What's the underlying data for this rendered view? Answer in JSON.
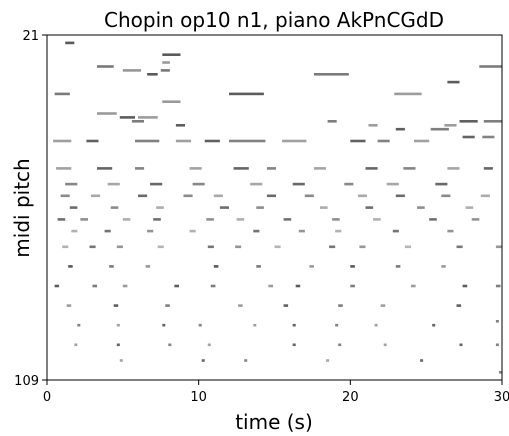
{
  "chart_data": {
    "type": "heatmap",
    "title": "Chopin op10 n1, piano AkPnCGdD",
    "xlabel": "time (s)",
    "ylabel": "midi pitch",
    "xlim": [
      0,
      30
    ],
    "ylim": [
      109,
      21
    ],
    "y_axis_inverted": true,
    "xticks": [
      0,
      10,
      20,
      30
    ],
    "yticks": [
      21,
      109
    ],
    "colormap": "grayscale (white = 0, dark = high velocity)",
    "grid": false,
    "legend": "none",
    "note_events": [
      {
        "t": 1.2,
        "pitch": 23,
        "dur": 0.6
      },
      {
        "t": 3.3,
        "pitch": 29,
        "dur": 1.1
      },
      {
        "t": 5.0,
        "pitch": 30,
        "dur": 1.2
      },
      {
        "t": 6.6,
        "pitch": 31,
        "dur": 0.7
      },
      {
        "t": 7.5,
        "pitch": 30,
        "dur": 0.6
      },
      {
        "t": 7.6,
        "pitch": 28,
        "dur": 0.5
      },
      {
        "t": 7.6,
        "pitch": 26,
        "dur": 1.2
      },
      {
        "t": 0.5,
        "pitch": 36,
        "dur": 1.0
      },
      {
        "t": 7.6,
        "pitch": 38,
        "dur": 1.2
      },
      {
        "t": 12.0,
        "pitch": 36,
        "dur": 2.3
      },
      {
        "t": 17.6,
        "pitch": 31,
        "dur": 2.3
      },
      {
        "t": 22.9,
        "pitch": 36,
        "dur": 1.8
      },
      {
        "t": 26.4,
        "pitch": 33,
        "dur": 0.8
      },
      {
        "t": 28.5,
        "pitch": 29,
        "dur": 1.6
      },
      {
        "t": 3.3,
        "pitch": 41,
        "dur": 1.3
      },
      {
        "t": 4.8,
        "pitch": 42,
        "dur": 1.0
      },
      {
        "t": 5.6,
        "pitch": 43,
        "dur": 0.8
      },
      {
        "t": 6.0,
        "pitch": 42,
        "dur": 1.3
      },
      {
        "t": 8.5,
        "pitch": 44,
        "dur": 0.6
      },
      {
        "t": 18.5,
        "pitch": 43,
        "dur": 0.6
      },
      {
        "t": 21.2,
        "pitch": 44,
        "dur": 0.6
      },
      {
        "t": 23.0,
        "pitch": 45,
        "dur": 0.6
      },
      {
        "t": 25.3,
        "pitch": 45,
        "dur": 1.2
      },
      {
        "t": 26.2,
        "pitch": 44,
        "dur": 0.8
      },
      {
        "t": 27.2,
        "pitch": 43,
        "dur": 1.2
      },
      {
        "t": 28.8,
        "pitch": 43,
        "dur": 1.2
      },
      {
        "t": 0.4,
        "pitch": 48,
        "dur": 1.2
      },
      {
        "t": 2.6,
        "pitch": 48,
        "dur": 0.8
      },
      {
        "t": 5.8,
        "pitch": 48,
        "dur": 1.6
      },
      {
        "t": 8.5,
        "pitch": 48,
        "dur": 1.0
      },
      {
        "t": 10.4,
        "pitch": 48,
        "dur": 1.0
      },
      {
        "t": 12.0,
        "pitch": 48,
        "dur": 2.4
      },
      {
        "t": 15.5,
        "pitch": 48,
        "dur": 1.6
      },
      {
        "t": 20.0,
        "pitch": 48,
        "dur": 1.0
      },
      {
        "t": 21.8,
        "pitch": 48,
        "dur": 0.8
      },
      {
        "t": 24.2,
        "pitch": 48,
        "dur": 1.0
      },
      {
        "t": 27.4,
        "pitch": 47,
        "dur": 0.8
      },
      {
        "t": 28.7,
        "pitch": 47,
        "dur": 0.8
      },
      {
        "t": 0.6,
        "pitch": 55,
        "dur": 1.0
      },
      {
        "t": 3.3,
        "pitch": 55,
        "dur": 1.0
      },
      {
        "t": 5.8,
        "pitch": 55,
        "dur": 0.6
      },
      {
        "t": 9.4,
        "pitch": 55,
        "dur": 0.8
      },
      {
        "t": 12.3,
        "pitch": 55,
        "dur": 1.0
      },
      {
        "t": 14.5,
        "pitch": 55,
        "dur": 0.6
      },
      {
        "t": 17.6,
        "pitch": 55,
        "dur": 0.8
      },
      {
        "t": 21.0,
        "pitch": 55,
        "dur": 0.8
      },
      {
        "t": 23.5,
        "pitch": 55,
        "dur": 0.8
      },
      {
        "t": 26.4,
        "pitch": 55,
        "dur": 0.8
      },
      {
        "t": 28.8,
        "pitch": 55,
        "dur": 0.6
      },
      {
        "t": 1.2,
        "pitch": 59,
        "dur": 0.8
      },
      {
        "t": 4.0,
        "pitch": 59,
        "dur": 0.8
      },
      {
        "t": 6.8,
        "pitch": 59,
        "dur": 0.8
      },
      {
        "t": 9.6,
        "pitch": 59,
        "dur": 0.8
      },
      {
        "t": 13.4,
        "pitch": 59,
        "dur": 0.8
      },
      {
        "t": 16.2,
        "pitch": 59,
        "dur": 0.8
      },
      {
        "t": 19.6,
        "pitch": 59,
        "dur": 0.6
      },
      {
        "t": 22.4,
        "pitch": 59,
        "dur": 0.8
      },
      {
        "t": 25.6,
        "pitch": 59,
        "dur": 0.8
      },
      {
        "t": 0.9,
        "pitch": 62,
        "dur": 0.6
      },
      {
        "t": 2.9,
        "pitch": 62,
        "dur": 0.6
      },
      {
        "t": 6.0,
        "pitch": 62,
        "dur": 0.6
      },
      {
        "t": 9.0,
        "pitch": 62,
        "dur": 0.6
      },
      {
        "t": 11.0,
        "pitch": 62,
        "dur": 0.6
      },
      {
        "t": 14.5,
        "pitch": 62,
        "dur": 0.6
      },
      {
        "t": 17.0,
        "pitch": 62,
        "dur": 0.6
      },
      {
        "t": 20.5,
        "pitch": 62,
        "dur": 0.6
      },
      {
        "t": 23.0,
        "pitch": 62,
        "dur": 0.6
      },
      {
        "t": 26.0,
        "pitch": 62,
        "dur": 0.6
      },
      {
        "t": 28.6,
        "pitch": 62,
        "dur": 0.6
      },
      {
        "t": 1.5,
        "pitch": 65,
        "dur": 0.5
      },
      {
        "t": 4.2,
        "pitch": 65,
        "dur": 0.5
      },
      {
        "t": 7.2,
        "pitch": 65,
        "dur": 0.5
      },
      {
        "t": 11.4,
        "pitch": 65,
        "dur": 0.6
      },
      {
        "t": 13.8,
        "pitch": 65,
        "dur": 0.5
      },
      {
        "t": 18.0,
        "pitch": 65,
        "dur": 0.5
      },
      {
        "t": 21.0,
        "pitch": 65,
        "dur": 0.5
      },
      {
        "t": 24.4,
        "pitch": 65,
        "dur": 0.5
      },
      {
        "t": 27.6,
        "pitch": 65,
        "dur": 0.5
      },
      {
        "t": 0.7,
        "pitch": 68,
        "dur": 0.5
      },
      {
        "t": 2.2,
        "pitch": 68,
        "dur": 0.5
      },
      {
        "t": 5.0,
        "pitch": 68,
        "dur": 0.5
      },
      {
        "t": 7.0,
        "pitch": 68,
        "dur": 0.5
      },
      {
        "t": 10.5,
        "pitch": 68,
        "dur": 0.5
      },
      {
        "t": 12.5,
        "pitch": 68,
        "dur": 0.5
      },
      {
        "t": 15.6,
        "pitch": 68,
        "dur": 0.5
      },
      {
        "t": 18.8,
        "pitch": 68,
        "dur": 0.5
      },
      {
        "t": 21.5,
        "pitch": 68,
        "dur": 0.5
      },
      {
        "t": 25.2,
        "pitch": 68,
        "dur": 0.5
      },
      {
        "t": 28.0,
        "pitch": 68,
        "dur": 0.5
      },
      {
        "t": 1.6,
        "pitch": 71,
        "dur": 0.4
      },
      {
        "t": 3.8,
        "pitch": 71,
        "dur": 0.4
      },
      {
        "t": 6.6,
        "pitch": 71,
        "dur": 0.4
      },
      {
        "t": 9.4,
        "pitch": 71,
        "dur": 0.4
      },
      {
        "t": 13.6,
        "pitch": 71,
        "dur": 0.4
      },
      {
        "t": 16.6,
        "pitch": 71,
        "dur": 0.4
      },
      {
        "t": 19.0,
        "pitch": 71,
        "dur": 0.4
      },
      {
        "t": 22.8,
        "pitch": 71,
        "dur": 0.4
      },
      {
        "t": 26.4,
        "pitch": 71,
        "dur": 0.4
      },
      {
        "t": 1.0,
        "pitch": 75,
        "dur": 0.4
      },
      {
        "t": 2.8,
        "pitch": 75,
        "dur": 0.4
      },
      {
        "t": 4.6,
        "pitch": 75,
        "dur": 0.4
      },
      {
        "t": 7.3,
        "pitch": 75,
        "dur": 0.4
      },
      {
        "t": 10.6,
        "pitch": 75,
        "dur": 0.4
      },
      {
        "t": 12.4,
        "pitch": 75,
        "dur": 0.4
      },
      {
        "t": 15.0,
        "pitch": 75,
        "dur": 0.4
      },
      {
        "t": 18.6,
        "pitch": 75,
        "dur": 0.4
      },
      {
        "t": 20.6,
        "pitch": 75,
        "dur": 0.4
      },
      {
        "t": 23.6,
        "pitch": 75,
        "dur": 0.4
      },
      {
        "t": 27.0,
        "pitch": 75,
        "dur": 0.4
      },
      {
        "t": 29.6,
        "pitch": 75,
        "dur": 0.4
      },
      {
        "t": 1.4,
        "pitch": 80,
        "dur": 0.3
      },
      {
        "t": 4.1,
        "pitch": 80,
        "dur": 0.3
      },
      {
        "t": 6.5,
        "pitch": 80,
        "dur": 0.3
      },
      {
        "t": 11.0,
        "pitch": 80,
        "dur": 0.3
      },
      {
        "t": 13.8,
        "pitch": 80,
        "dur": 0.3
      },
      {
        "t": 17.3,
        "pitch": 80,
        "dur": 0.3
      },
      {
        "t": 20.0,
        "pitch": 80,
        "dur": 0.3
      },
      {
        "t": 23.0,
        "pitch": 80,
        "dur": 0.3
      },
      {
        "t": 26.0,
        "pitch": 80,
        "dur": 0.3
      },
      {
        "t": 0.5,
        "pitch": 85,
        "dur": 0.3
      },
      {
        "t": 3.0,
        "pitch": 85,
        "dur": 0.3
      },
      {
        "t": 5.0,
        "pitch": 85,
        "dur": 0.3
      },
      {
        "t": 8.4,
        "pitch": 85,
        "dur": 0.3
      },
      {
        "t": 10.8,
        "pitch": 85,
        "dur": 0.3
      },
      {
        "t": 14.6,
        "pitch": 85,
        "dur": 0.3
      },
      {
        "t": 16.4,
        "pitch": 85,
        "dur": 0.3
      },
      {
        "t": 20.0,
        "pitch": 85,
        "dur": 0.3
      },
      {
        "t": 24.0,
        "pitch": 85,
        "dur": 0.3
      },
      {
        "t": 27.4,
        "pitch": 85,
        "dur": 0.3
      },
      {
        "t": 29.6,
        "pitch": 85,
        "dur": 0.3
      },
      {
        "t": 1.3,
        "pitch": 90,
        "dur": 0.3
      },
      {
        "t": 4.4,
        "pitch": 90,
        "dur": 0.3
      },
      {
        "t": 7.8,
        "pitch": 90,
        "dur": 0.3
      },
      {
        "t": 12.6,
        "pitch": 90,
        "dur": 0.3
      },
      {
        "t": 15.6,
        "pitch": 90,
        "dur": 0.3
      },
      {
        "t": 19.2,
        "pitch": 90,
        "dur": 0.3
      },
      {
        "t": 22.0,
        "pitch": 90,
        "dur": 0.3
      },
      {
        "t": 27.0,
        "pitch": 90,
        "dur": 0.3
      },
      {
        "t": 2.0,
        "pitch": 95,
        "dur": 0.2
      },
      {
        "t": 4.6,
        "pitch": 95,
        "dur": 0.2
      },
      {
        "t": 7.6,
        "pitch": 95,
        "dur": 0.2
      },
      {
        "t": 10.0,
        "pitch": 95,
        "dur": 0.2
      },
      {
        "t": 13.6,
        "pitch": 95,
        "dur": 0.2
      },
      {
        "t": 16.2,
        "pitch": 95,
        "dur": 0.2
      },
      {
        "t": 19.0,
        "pitch": 95,
        "dur": 0.2
      },
      {
        "t": 21.6,
        "pitch": 95,
        "dur": 0.2
      },
      {
        "t": 25.4,
        "pitch": 95,
        "dur": 0.2
      },
      {
        "t": 29.6,
        "pitch": 94,
        "dur": 0.2
      },
      {
        "t": 1.8,
        "pitch": 100,
        "dur": 0.2
      },
      {
        "t": 4.6,
        "pitch": 100,
        "dur": 0.2
      },
      {
        "t": 8.0,
        "pitch": 100,
        "dur": 0.2
      },
      {
        "t": 10.6,
        "pitch": 100,
        "dur": 0.2
      },
      {
        "t": 16.2,
        "pitch": 100,
        "dur": 0.2
      },
      {
        "t": 19.2,
        "pitch": 100,
        "dur": 0.2
      },
      {
        "t": 22.2,
        "pitch": 100,
        "dur": 0.2
      },
      {
        "t": 27.2,
        "pitch": 100,
        "dur": 0.2
      },
      {
        "t": 29.6,
        "pitch": 100,
        "dur": 0.2
      },
      {
        "t": 4.8,
        "pitch": 104,
        "dur": 0.2
      },
      {
        "t": 10.2,
        "pitch": 104,
        "dur": 0.2
      },
      {
        "t": 13.0,
        "pitch": 104,
        "dur": 0.2
      },
      {
        "t": 18.4,
        "pitch": 104,
        "dur": 0.2
      },
      {
        "t": 24.6,
        "pitch": 104,
        "dur": 0.2
      },
      {
        "t": 29.8,
        "pitch": 107,
        "dur": 0.2
      }
    ]
  }
}
